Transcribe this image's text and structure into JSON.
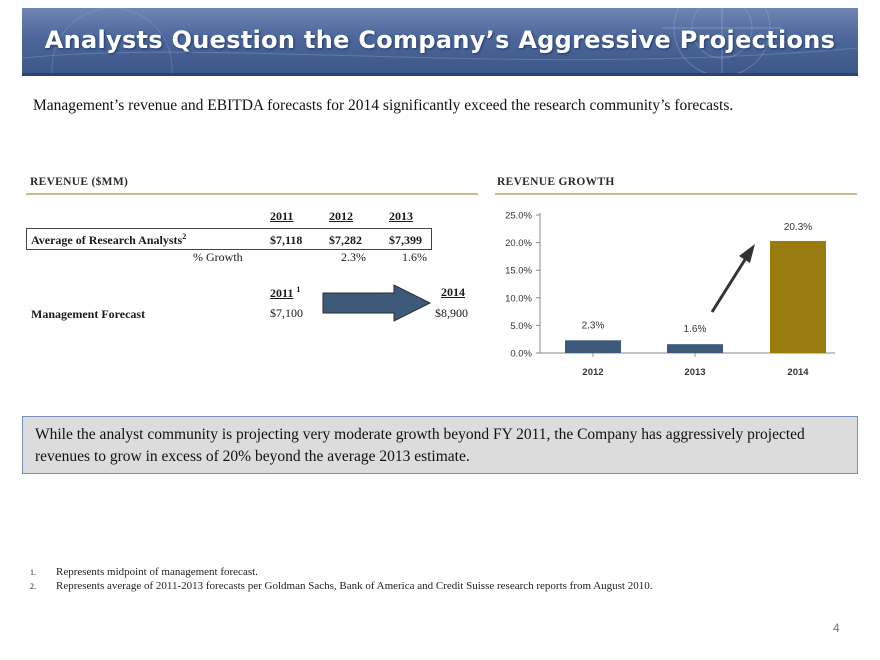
{
  "header": {
    "title": "Analysts Question the Company’s Aggressive Projections"
  },
  "subtitle": "Management’s revenue and EBITDA forecasts for 2014 significantly exceed the research community’s forecasts.",
  "revenue_table": {
    "section_title": "REVENUE ($MM)",
    "years_top": [
      "2011",
      "2012",
      "2013"
    ],
    "avg_label": "Average of Research Analysts",
    "avg_footnote": "2",
    "avg_values": [
      "$7,118",
      "$7,282",
      "$7,399"
    ],
    "growth_label": "% Growth",
    "growth_values": [
      "2.3%",
      "1.6%"
    ],
    "mgmt_year_start": "2011",
    "mgmt_year_start_footnote": "1",
    "mgmt_year_end": "2014",
    "mgmt_label": "Management Forecast",
    "mgmt_value_start": "$7,100",
    "mgmt_value_end": "$8,900"
  },
  "chart_data": {
    "type": "bar",
    "title": "REVENUE GROWTH",
    "categories": [
      "2012",
      "2013",
      "2014"
    ],
    "values": [
      2.3,
      1.6,
      20.3
    ],
    "value_labels": [
      "2.3%",
      "1.6%",
      "20.3%"
    ],
    "y_ticks": [
      "0.0%",
      "5.0%",
      "10.0%",
      "15.0%",
      "20.0%",
      "25.0%"
    ],
    "ylim": [
      0,
      25
    ],
    "colors": [
      "#3e5a7a",
      "#3e5a7a",
      "#9a7b10"
    ],
    "annotation": "arrow pointing up toward 2014 bar"
  },
  "note": "While the analyst community is projecting very moderate growth beyond FY 2011, the Company has aggressively projected revenues to grow in excess of 20% beyond the average 2013 estimate.",
  "footnotes": [
    {
      "num": "1.",
      "text": "Represents midpoint of management forecast."
    },
    {
      "num": "2.",
      "text": "Represents average of 2011-2013 forecasts per Goldman Sachs, Bank of America and Credit Suisse research reports from August 2010."
    }
  ],
  "page_number": "4"
}
